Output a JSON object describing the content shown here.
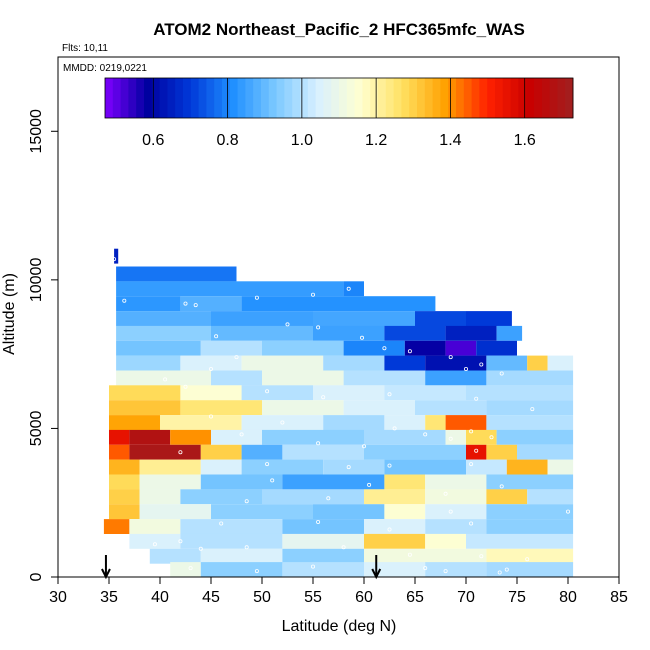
{
  "chart_data": {
    "type": "heatmap",
    "title": "ATOM2 Northeast_Pacific_2 HFC365mfc_WAS",
    "flights_label": "Flts: 10,11",
    "dates_label": "MMDD: 0219,0221",
    "xlabel": "Latitude (deg N)",
    "ylabel": "Altitude (m)",
    "xlim": [
      30,
      85
    ],
    "ylim": [
      0,
      17500
    ],
    "x_ticks": [
      "30",
      "35",
      "40",
      "45",
      "50",
      "55",
      "60",
      "65",
      "70",
      "75",
      "80",
      "85"
    ],
    "y_ticks": [
      "0",
      "5000",
      "10000",
      "15000"
    ],
    "colorbar": {
      "range": [
        0.47,
        1.73
      ],
      "ticks": [
        "0.6",
        "0.8",
        "1.0",
        "1.2",
        "1.4",
        "1.6"
      ],
      "colors": [
        "#7f00ff",
        "#0000a0",
        "#0038d8",
        "#1f8fff",
        "#7ac8ff",
        "#d8f0ff",
        "#ffffd0",
        "#ffe060",
        "#ffa000",
        "#ff2000",
        "#c80000",
        "#a02020"
      ]
    },
    "arrows_latitude": [
      34.7,
      61.2
    ],
    "layers": [
      {
        "alt": 10800,
        "segments": [
          [
            35.5,
            35.9,
            0.65
          ]
        ]
      },
      {
        "alt": 10200,
        "segments": [
          [
            35.7,
            47.5,
            0.78
          ]
        ]
      },
      {
        "alt": 9700,
        "segments": [
          [
            35.7,
            58,
            0.84
          ],
          [
            58,
            60,
            0.8
          ]
        ]
      },
      {
        "alt": 9200,
        "segments": [
          [
            35.7,
            42,
            0.83
          ],
          [
            42,
            48,
            0.88
          ],
          [
            48,
            67,
            0.82
          ]
        ]
      },
      {
        "alt": 8700,
        "segments": [
          [
            35.7,
            45,
            0.88
          ],
          [
            45,
            55,
            0.85
          ],
          [
            55,
            65,
            0.86
          ],
          [
            65,
            70,
            0.72
          ],
          [
            70,
            74.5,
            0.7
          ]
        ]
      },
      {
        "alt": 8200,
        "segments": [
          [
            35.7,
            45,
            0.95
          ],
          [
            45,
            55,
            0.9
          ],
          [
            55,
            62,
            0.85
          ],
          [
            62,
            68,
            0.72
          ],
          [
            68,
            73,
            0.65
          ],
          [
            73,
            75.5,
            0.85
          ]
        ]
      },
      {
        "alt": 7700,
        "segments": [
          [
            35.7,
            44,
            0.92
          ],
          [
            44,
            50,
            1.0
          ],
          [
            50,
            58,
            0.95
          ],
          [
            58,
            64,
            0.8
          ],
          [
            64,
            68,
            0.58
          ],
          [
            68,
            71,
            0.52
          ],
          [
            71,
            75,
            0.68
          ]
        ]
      },
      {
        "alt": 7200,
        "segments": [
          [
            35.7,
            42,
            0.97
          ],
          [
            42,
            48,
            1.05
          ],
          [
            48,
            56,
            1.1
          ],
          [
            56,
            62,
            0.98
          ],
          [
            62,
            66,
            0.7
          ],
          [
            66,
            72,
            0.62
          ],
          [
            72,
            76,
            0.9
          ],
          [
            76,
            78,
            1.3
          ],
          [
            78,
            80.5,
            1.05
          ]
        ]
      },
      {
        "alt": 6700,
        "segments": [
          [
            35.7,
            45,
            1.1
          ],
          [
            45,
            50,
            1.0
          ],
          [
            50,
            58,
            1.1
          ],
          [
            58,
            66,
            1.0
          ],
          [
            66,
            72,
            0.85
          ],
          [
            72,
            80.5,
            0.98
          ]
        ]
      },
      {
        "alt": 6200,
        "segments": [
          [
            35,
            42,
            1.28
          ],
          [
            42,
            48,
            1.15
          ],
          [
            48,
            55,
            1.0
          ],
          [
            55,
            62,
            1.05
          ],
          [
            62,
            70,
            1.02
          ],
          [
            70,
            80.5,
            1.0
          ]
        ]
      },
      {
        "alt": 5700,
        "segments": [
          [
            35,
            42,
            1.32
          ],
          [
            42,
            50,
            1.25
          ],
          [
            50,
            58,
            1.1
          ],
          [
            58,
            65,
            1.05
          ],
          [
            65,
            72,
            1.0
          ],
          [
            72,
            80.5,
            0.98
          ]
        ]
      },
      {
        "alt": 5200,
        "segments": [
          [
            35,
            40,
            1.38
          ],
          [
            40,
            48,
            1.2
          ],
          [
            48,
            56,
            1.05
          ],
          [
            56,
            62,
            0.98
          ],
          [
            62,
            66,
            1.05
          ],
          [
            66,
            68,
            1.25
          ],
          [
            68,
            72,
            1.45
          ],
          [
            72,
            80.5,
            1.0
          ]
        ]
      },
      {
        "alt": 4700,
        "segments": [
          [
            35,
            37,
            1.55
          ],
          [
            37,
            41,
            1.68
          ],
          [
            41,
            45,
            1.4
          ],
          [
            45,
            50,
            1.05
          ],
          [
            50,
            60,
            0.95
          ],
          [
            60,
            68,
            0.98
          ],
          [
            68,
            70,
            1.1
          ],
          [
            70,
            73,
            1.28
          ],
          [
            73,
            80.5,
            0.95
          ]
        ]
      },
      {
        "alt": 4200,
        "segments": [
          [
            35,
            37,
            1.45
          ],
          [
            37,
            44,
            1.7
          ],
          [
            44,
            48,
            1.3
          ],
          [
            48,
            52,
            0.88
          ],
          [
            52,
            60,
            1.0
          ],
          [
            60,
            70,
            0.95
          ],
          [
            70,
            72,
            1.55
          ],
          [
            72,
            75,
            1.3
          ],
          [
            75,
            80.5,
            0.98
          ]
        ]
      },
      {
        "alt": 3700,
        "segments": [
          [
            35,
            38,
            1.35
          ],
          [
            38,
            44,
            1.22
          ],
          [
            44,
            48,
            1.05
          ],
          [
            48,
            56,
            0.95
          ],
          [
            56,
            62,
            0.98
          ],
          [
            62,
            70,
            0.92
          ],
          [
            70,
            74,
            1.02
          ],
          [
            74,
            78,
            1.35
          ],
          [
            78,
            80.5,
            1.1
          ]
        ]
      },
      {
        "alt": 3200,
        "segments": [
          [
            35,
            38,
            1.28
          ],
          [
            38,
            44,
            1.1
          ],
          [
            44,
            52,
            0.92
          ],
          [
            52,
            62,
            0.85
          ],
          [
            62,
            66,
            1.25
          ],
          [
            66,
            72,
            1.1
          ],
          [
            72,
            80.5,
            0.95
          ]
        ]
      },
      {
        "alt": 2700,
        "segments": [
          [
            35,
            38,
            1.3
          ],
          [
            38,
            42,
            1.1
          ],
          [
            42,
            50,
            0.95
          ],
          [
            50,
            60,
            0.98
          ],
          [
            60,
            66,
            1.22
          ],
          [
            66,
            72,
            1.12
          ],
          [
            72,
            76,
            1.3
          ],
          [
            76,
            80.5,
            1.0
          ]
        ]
      },
      {
        "alt": 2200,
        "segments": [
          [
            35,
            38,
            1.32
          ],
          [
            38,
            45,
            1.08
          ],
          [
            45,
            55,
            0.95
          ],
          [
            55,
            62,
            0.92
          ],
          [
            62,
            66,
            1.15
          ],
          [
            66,
            72,
            1.05
          ],
          [
            72,
            80.5,
            0.95
          ]
        ]
      },
      {
        "alt": 1700,
        "segments": [
          [
            34.5,
            37,
            1.42
          ],
          [
            37,
            42,
            1.12
          ],
          [
            42,
            52,
            1.0
          ],
          [
            52,
            60,
            0.92
          ],
          [
            60,
            66,
            1.05
          ],
          [
            66,
            72,
            1.0
          ],
          [
            72,
            80.5,
            0.95
          ]
        ]
      },
      {
        "alt": 1200,
        "segments": [
          [
            37,
            42,
            1.05
          ],
          [
            42,
            52,
            1.0
          ],
          [
            52,
            60,
            1.08
          ],
          [
            60,
            66,
            1.3
          ],
          [
            66,
            70,
            1.15
          ],
          [
            70,
            80.5,
            1.02
          ]
        ]
      },
      {
        "alt": 700,
        "segments": [
          [
            39,
            44,
            1.0
          ],
          [
            44,
            52,
            1.05
          ],
          [
            52,
            60,
            0.95
          ],
          [
            60,
            72,
            1.12
          ],
          [
            72,
            80.5,
            1.18
          ]
        ]
      },
      {
        "alt": 250,
        "segments": [
          [
            41,
            44,
            1.1
          ],
          [
            44,
            52,
            0.95
          ],
          [
            52,
            60,
            1.0
          ],
          [
            60,
            66,
            1.05
          ],
          [
            66,
            72,
            1.0
          ],
          [
            72,
            80.5,
            0.98
          ]
        ]
      }
    ],
    "samples": [
      [
        35.5,
        10700
      ],
      [
        36.5,
        9300
      ],
      [
        42.5,
        9200
      ],
      [
        43.5,
        9150
      ],
      [
        55,
        9500
      ],
      [
        58.5,
        9700
      ],
      [
        49.5,
        9400
      ],
      [
        45.5,
        8100
      ],
      [
        52.5,
        8500
      ],
      [
        55.5,
        8400
      ],
      [
        59.8,
        8050
      ],
      [
        62,
        7700
      ],
      [
        64.5,
        7600
      ],
      [
        68.5,
        7400
      ],
      [
        71.5,
        7150
      ],
      [
        73.5,
        6850
      ],
      [
        70,
        7000
      ],
      [
        47.5,
        7400
      ],
      [
        45,
        7000
      ],
      [
        40.5,
        6650
      ],
      [
        42.5,
        6400
      ],
      [
        50.5,
        6250
      ],
      [
        56,
        6050
      ],
      [
        62.5,
        6150
      ],
      [
        71,
        6000
      ],
      [
        76.5,
        5650
      ],
      [
        45,
        5400
      ],
      [
        52,
        5200
      ],
      [
        63,
        5000
      ],
      [
        70.5,
        4900
      ],
      [
        72.5,
        4700
      ],
      [
        71,
        4250
      ],
      [
        66,
        4800
      ],
      [
        48,
        4800
      ],
      [
        55.5,
        4500
      ],
      [
        60,
        4400
      ],
      [
        68.5,
        4650
      ],
      [
        42,
        4200
      ],
      [
        50.5,
        3800
      ],
      [
        58.5,
        3700
      ],
      [
        62.5,
        3750
      ],
      [
        70.5,
        3800
      ],
      [
        51,
        3250
      ],
      [
        60.5,
        3100
      ],
      [
        73.5,
        3050
      ],
      [
        68,
        2800
      ],
      [
        48.5,
        2550
      ],
      [
        56.5,
        2650
      ],
      [
        68.5,
        2200
      ],
      [
        80,
        2200
      ],
      [
        46,
        1800
      ],
      [
        55.5,
        1850
      ],
      [
        62.5,
        1600
      ],
      [
        70.5,
        1800
      ],
      [
        39.5,
        1100
      ],
      [
        44,
        950
      ],
      [
        48.5,
        1000
      ],
      [
        58,
        1000
      ],
      [
        64.5,
        750
      ],
      [
        71.5,
        700
      ],
      [
        76,
        600
      ],
      [
        43,
        300
      ],
      [
        49.5,
        200
      ],
      [
        55,
        350
      ],
      [
        68,
        200
      ],
      [
        74,
        250
      ],
      [
        34.5,
        2400
      ],
      [
        42,
        1200
      ],
      [
        66,
        300
      ],
      [
        73.3,
        150
      ]
    ]
  }
}
